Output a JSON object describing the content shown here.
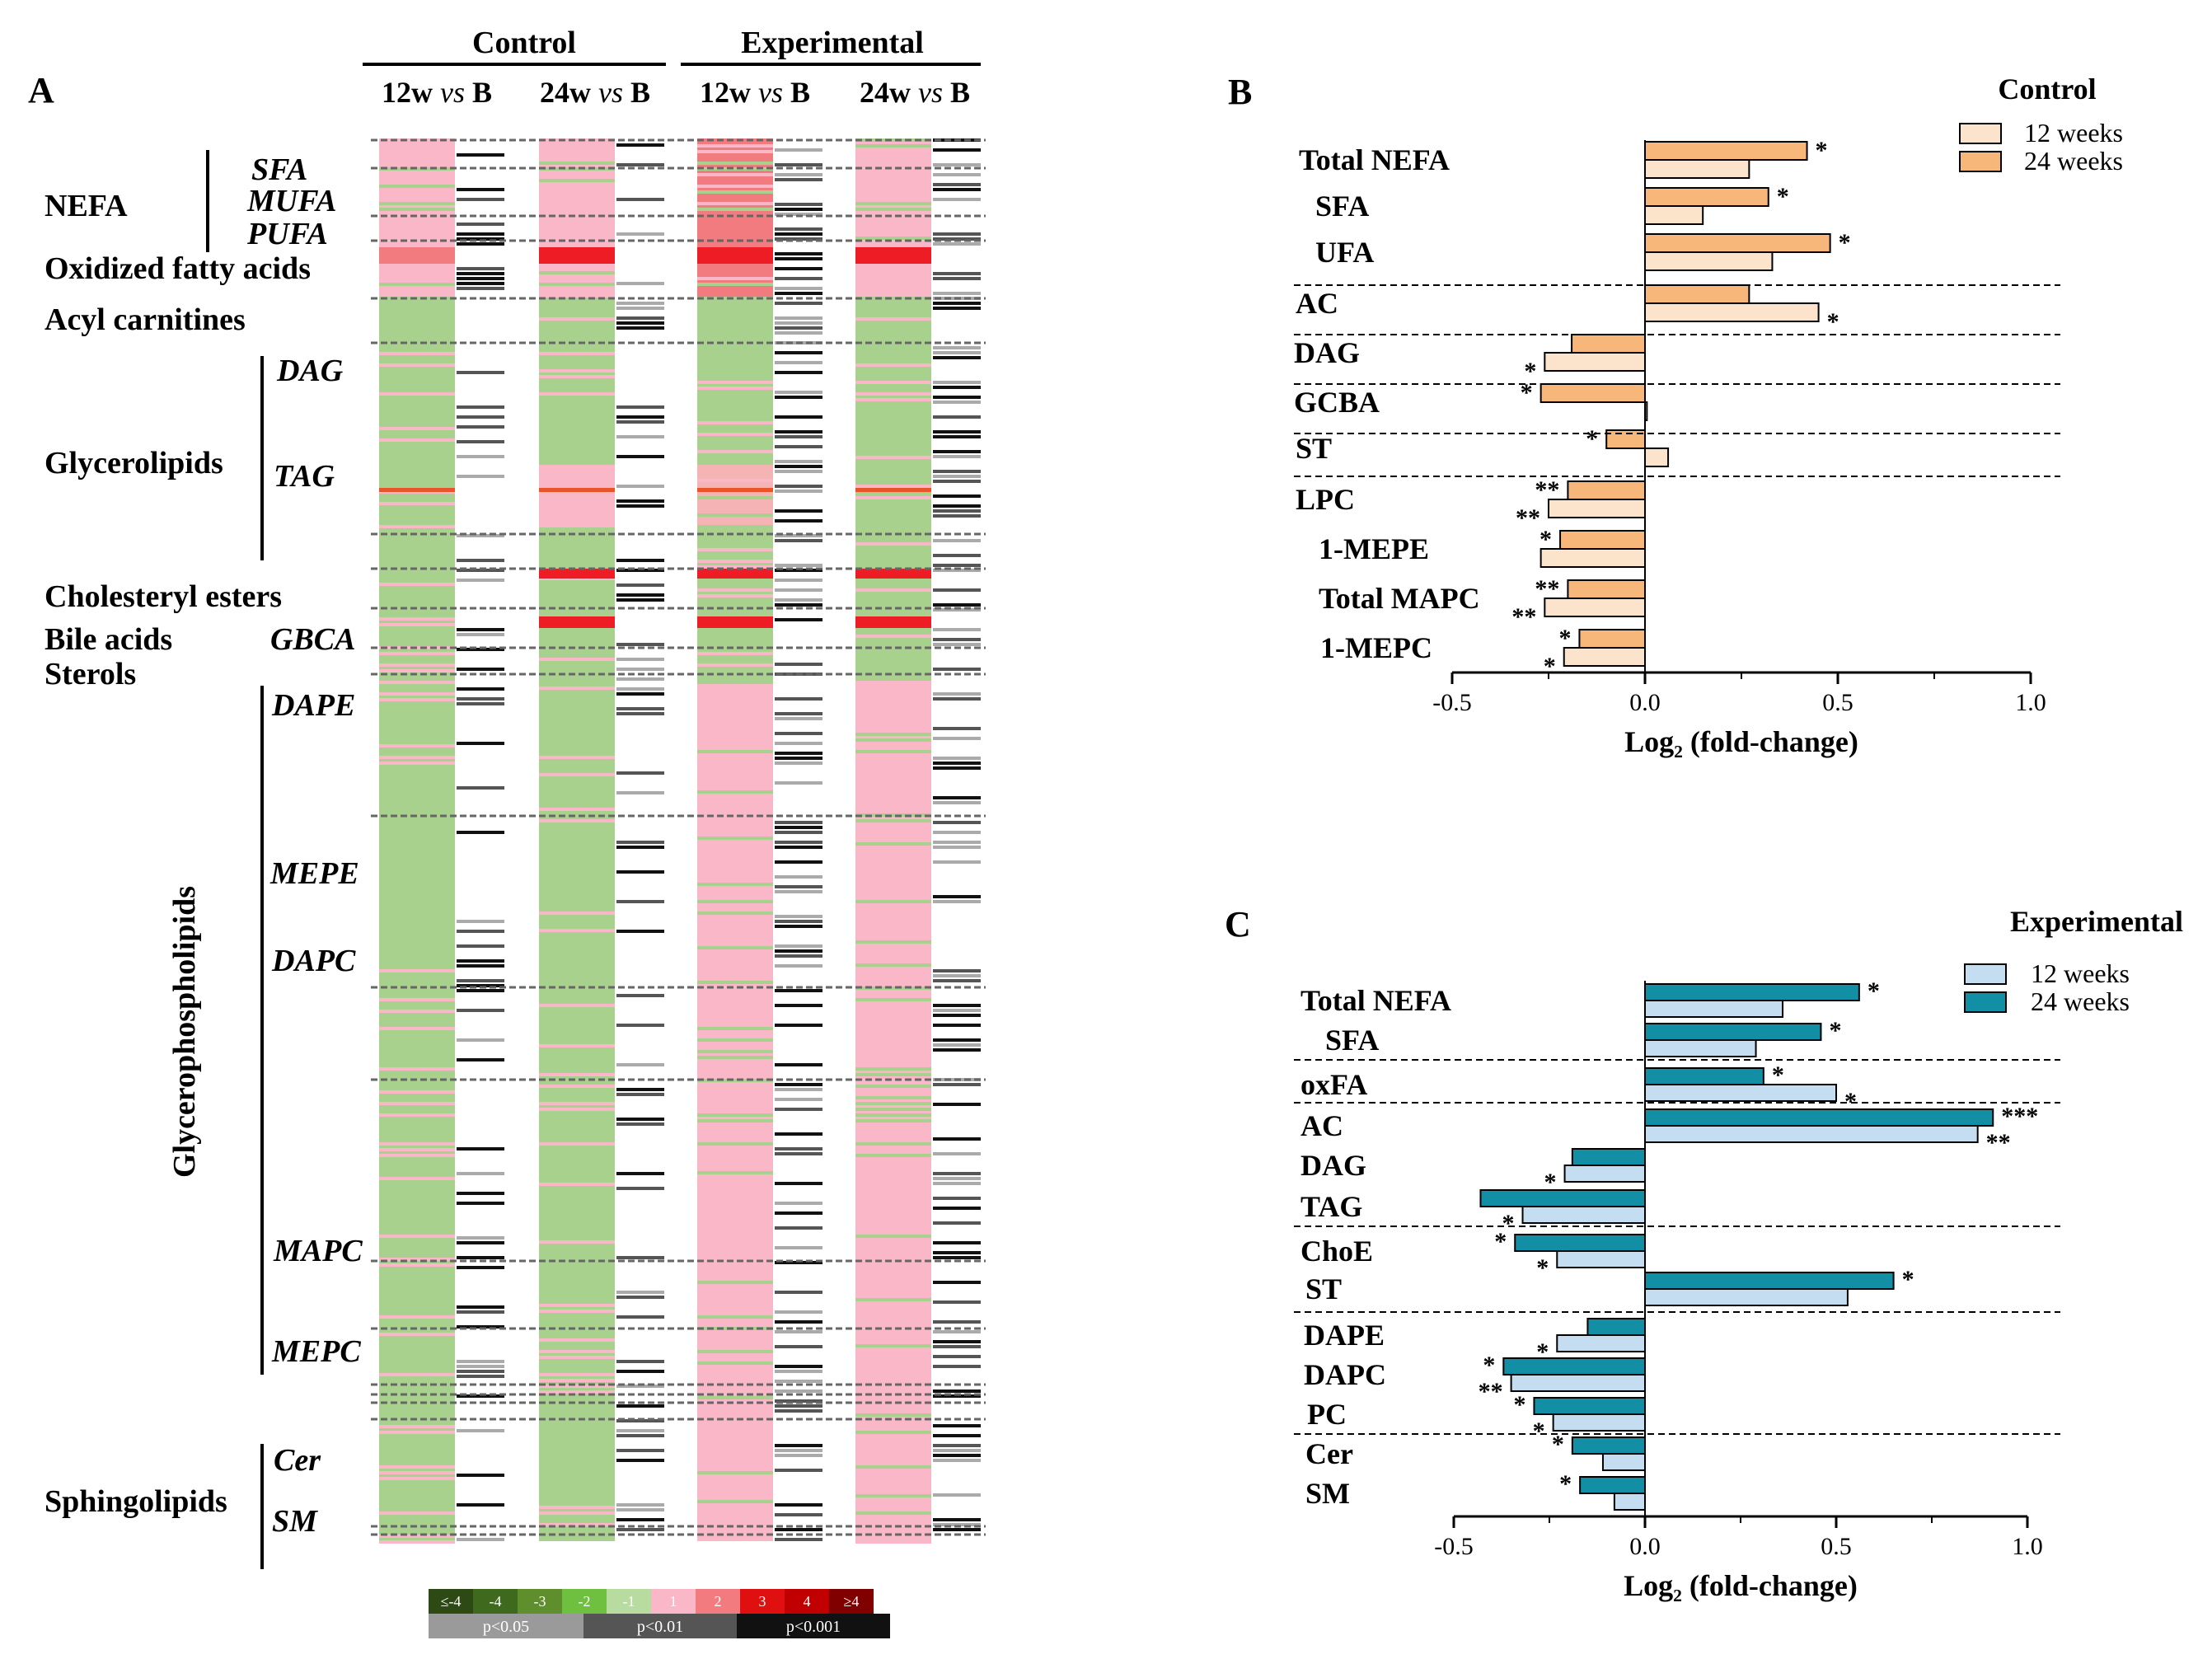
{
  "panel_a": {
    "panel_label": "A",
    "group_headers": [
      "Control",
      "Experimental"
    ],
    "column_headers": [
      {
        "pre": "12w ",
        "vs": "vs",
        "post": " B"
      },
      {
        "pre": "24w ",
        "vs": "vs",
        "post": " B"
      },
      {
        "pre": "12w ",
        "vs": "vs",
        "post": " B"
      },
      {
        "pre": "24w ",
        "vs": "vs",
        "post": " B"
      }
    ],
    "row_labels": {
      "nefa": "NEFA",
      "sfa": "SFA",
      "mufa": "MUFA",
      "pufa": "PUFA",
      "oxidized": "Oxidized fatty acids",
      "acyl": "Acyl carnitines",
      "dag": "DAG",
      "glycerolipids": "Glycerolipids",
      "tag": "TAG",
      "cholesteryl": "Cholesteryl esters",
      "bile": "Bile acids",
      "gbca": "GBCA",
      "sterols": "Sterols",
      "dape": "DAPE",
      "mepe": "MEPE",
      "dapc": "DAPC",
      "glycerophospholipids": "Glycerophospholipids",
      "mapc": "MAPC",
      "mepc": "MEPC",
      "cer": "Cer",
      "sphingolipids": "Sphingolipids",
      "sm": "SM"
    },
    "color_legend": {
      "labels": [
        "≤-4",
        "-4",
        "-3",
        "-2",
        "-1",
        "1",
        "2",
        "3",
        "4",
        "≥4"
      ],
      "colors": [
        "#2d4a14",
        "#3f6a1e",
        "#5f8f2c",
        "#6fc040",
        "#b8dca0",
        "#f9b7c7",
        "#f27b80",
        "#e01010",
        "#c00000",
        "#800000"
      ]
    },
    "pvalue_legend": {
      "labels": [
        "p<0.05",
        "p<0.01",
        "p<0.001"
      ],
      "colors": [
        "#9a9a9a",
        "#555555",
        "#111111"
      ]
    }
  },
  "chart_data": [
    {
      "type": "bar",
      "panel_label": "B",
      "title": "Control",
      "xlabel": "Log₂ (fold-change)",
      "xlim": [
        -0.5,
        1.0
      ],
      "xticks": [
        "-0.5",
        "0.0",
        "0.5",
        "1.0"
      ],
      "legend": [
        "12 weeks",
        "24 weeks"
      ],
      "colors": {
        "w12": "#fce3cc",
        "w24": "#f7b67a"
      },
      "categories": [
        "Total NEFA",
        "SFA",
        "UFA",
        "AC",
        "DAG",
        "GCBA",
        "ST",
        "LPC",
        "1-MEPE",
        "Total MAPC",
        "1-MEPC"
      ],
      "series": [
        {
          "name": "24 weeks",
          "values": [
            0.42,
            0.32,
            0.48,
            0.27,
            -0.19,
            -0.27,
            -0.1,
            -0.2,
            -0.22,
            -0.2,
            -0.17
          ]
        },
        {
          "name": "12 weeks",
          "values": [
            0.27,
            0.15,
            0.33,
            0.45,
            -0.26,
            0.005,
            0.06,
            -0.25,
            -0.27,
            -0.26,
            -0.21
          ]
        }
      ],
      "sig_24": [
        "*",
        "*",
        "*",
        "",
        "",
        "*",
        "*",
        "**",
        "*",
        "**",
        "*"
      ],
      "sig_12": [
        "",
        "",
        "",
        "*",
        "*",
        "",
        "",
        "**",
        "",
        "**",
        "*"
      ]
    },
    {
      "type": "bar",
      "panel_label": "C",
      "title": "Experimental",
      "xlabel": "Log₂ (fold-change)",
      "xlim": [
        -0.5,
        1.0
      ],
      "xticks": [
        "-0.5",
        "0.0",
        "0.5",
        "1.0"
      ],
      "legend": [
        "12 weeks",
        "24 weeks"
      ],
      "colors": {
        "w12": "#c5ddf1",
        "w24": "#128ea5"
      },
      "categories": [
        "Total NEFA",
        "SFA",
        "oxFA",
        "AC",
        "DAG",
        "TAG",
        "ChoE",
        "ST",
        "DAPE",
        "DAPC",
        "PC",
        "Cer",
        "SM"
      ],
      "series": [
        {
          "name": "24 weeks",
          "values": [
            0.56,
            0.46,
            0.31,
            0.91,
            -0.19,
            -0.43,
            -0.34,
            0.65,
            -0.15,
            -0.37,
            -0.29,
            -0.19,
            -0.17
          ]
        },
        {
          "name": "12 weeks",
          "values": [
            0.36,
            0.29,
            0.5,
            0.87,
            -0.21,
            -0.32,
            -0.23,
            0.53,
            -0.23,
            -0.35,
            -0.24,
            -0.11,
            -0.08
          ]
        }
      ],
      "sig_24": [
        "*",
        "*",
        "*",
        "***",
        "",
        "",
        "*",
        "*",
        "",
        "*",
        "*",
        "*",
        "*"
      ],
      "sig_12": [
        "",
        "",
        "*",
        "**",
        "*",
        "*",
        "*",
        "",
        "*",
        "**",
        "*",
        "",
        ""
      ]
    }
  ]
}
